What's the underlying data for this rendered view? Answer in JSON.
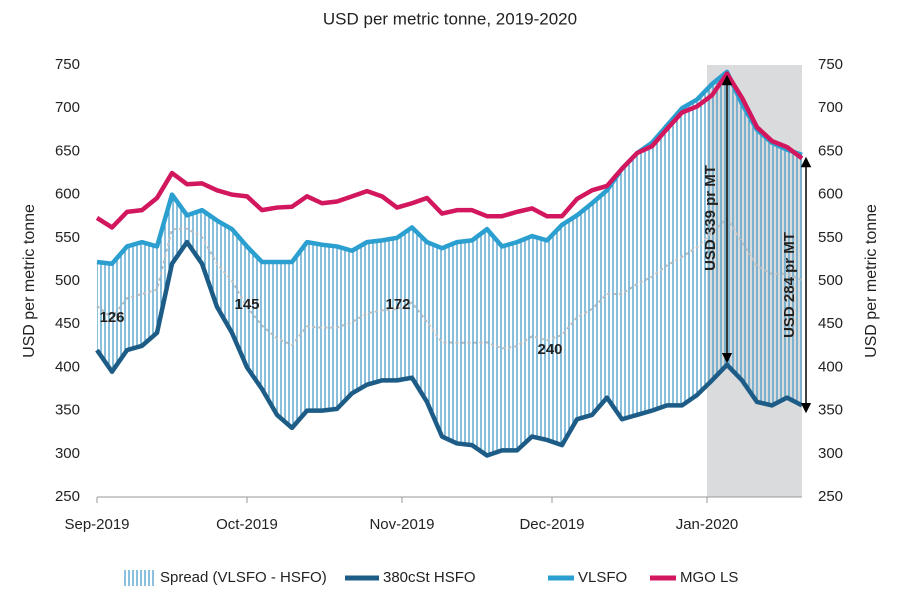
{
  "chart_data": {
    "type": "line",
    "title": "USD per metric tonne, 2019-2020",
    "y_label": "USD per metric tonne",
    "y2_label": "USD per metric tonne",
    "x": [
      0,
      3,
      6,
      9,
      12,
      15,
      18,
      21,
      24,
      27,
      30,
      33,
      36,
      39,
      42,
      45,
      48,
      51,
      54,
      57,
      60,
      63,
      66,
      69,
      72,
      75,
      78,
      81,
      84,
      87,
      90,
      93,
      96,
      99,
      102,
      105,
      108,
      111,
      114,
      117,
      120,
      123,
      126,
      129,
      132,
      135,
      138,
      141
    ],
    "xlim": [
      0,
      141
    ],
    "xticks": [
      {
        "value": 0,
        "label": "Sep-2019"
      },
      {
        "value": 30,
        "label": "Oct-2019"
      },
      {
        "value": 61,
        "label": "Nov-2019"
      },
      {
        "value": 91,
        "label": "Dec-2019"
      },
      {
        "value": 122,
        "label": "Jan-2020"
      }
    ],
    "ylim": [
      250,
      750
    ],
    "yticks": [
      250,
      300,
      350,
      400,
      450,
      500,
      550,
      600,
      650,
      700,
      750
    ],
    "y2lim": [
      250,
      750
    ],
    "y2ticks": [
      250,
      300,
      350,
      400,
      450,
      500,
      550,
      600,
      650,
      700,
      750
    ],
    "highlight_xlim": [
      122,
      141
    ],
    "highlight_color": "#d9dbdc",
    "series": [
      {
        "name": "Spread (VLSFO - HSFO)",
        "color": "#3d95c4"
      },
      {
        "name": "380cSt HSFO",
        "color": "#1d5c86",
        "values": [
          420,
          395,
          420,
          425,
          440,
          520,
          545,
          520,
          470,
          440,
          400,
          375,
          345,
          330,
          350,
          350,
          352,
          370,
          380,
          385,
          385,
          388,
          360,
          320,
          312,
          310,
          298,
          304,
          304,
          320,
          316,
          310,
          340,
          345,
          365,
          340,
          345,
          350,
          356,
          356,
          368,
          385,
          403,
          385,
          360,
          356,
          365,
          356
        ]
      },
      {
        "name": "VLSFO",
        "color": "#2a9fd0",
        "values": [
          522,
          520,
          540,
          545,
          540,
          600,
          576,
          582,
          570,
          560,
          540,
          522,
          522,
          522,
          545,
          542,
          540,
          535,
          545,
          547,
          550,
          562,
          545,
          538,
          545,
          547,
          560,
          540,
          545,
          552,
          547,
          565,
          576,
          590,
          605,
          630,
          648,
          660,
          680,
          700,
          710,
          728,
          742,
          705,
          675,
          660,
          652,
          646
        ]
      },
      {
        "name": "MGO LS",
        "color": "#d2175f",
        "values": [
          573,
          562,
          580,
          582,
          596,
          625,
          612,
          613,
          605,
          600,
          598,
          582,
          585,
          586,
          598,
          590,
          592,
          598,
          604,
          598,
          585,
          590,
          596,
          578,
          582,
          582,
          575,
          575,
          580,
          584,
          575,
          575,
          595,
          605,
          610,
          630,
          648,
          656,
          676,
          695,
          702,
          715,
          740,
          712,
          678,
          662,
          655,
          642
        ]
      }
    ],
    "annotations": [
      "126",
      "145",
      "172",
      "240",
      "USD 339 pr MT",
      "USD 284 pr MT"
    ]
  }
}
